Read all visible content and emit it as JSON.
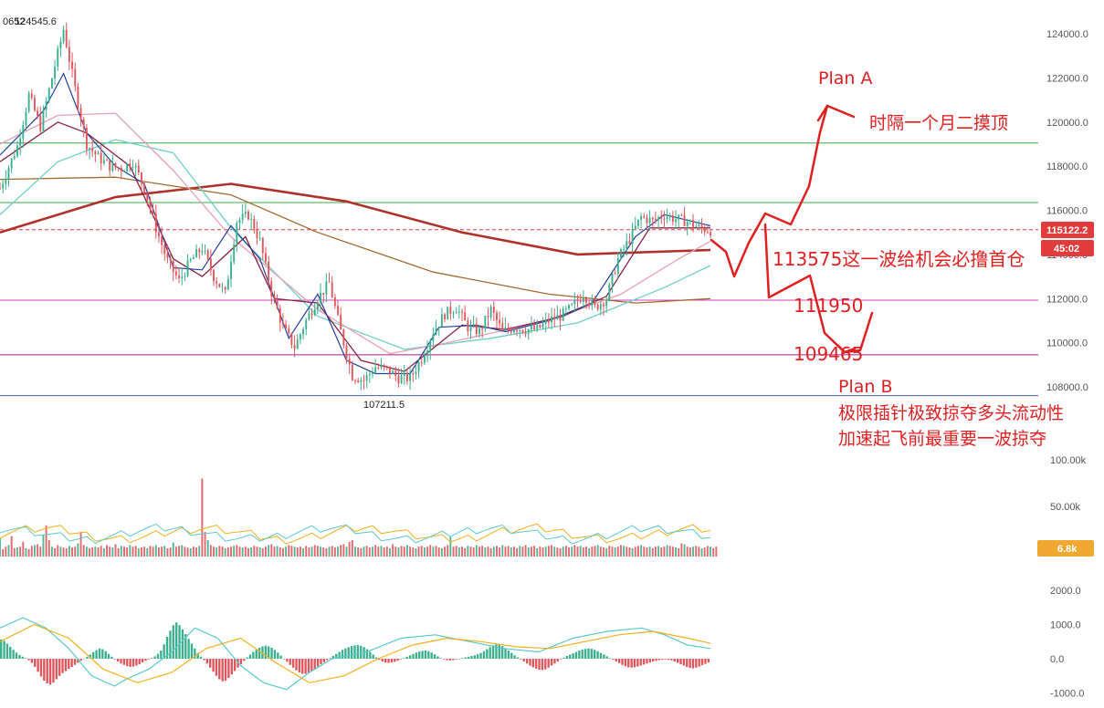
{
  "chart_data": {
    "type": "candlestick",
    "y_axis_ticks": [
      "124000.0",
      "122000.0",
      "120000.0",
      "118000.0",
      "116000.0",
      "114000.0",
      "112000.0",
      "110000.0",
      "108000.0"
    ],
    "ylim": [
      106800,
      125600
    ],
    "volume_axis_ticks": [
      "100.00k",
      "50.00k"
    ],
    "volume_ylim": [
      0,
      120000
    ],
    "macd_axis_ticks": [
      "2000.0",
      "1000.0",
      "0.0",
      "-1000.0"
    ],
    "macd_ylim": [
      -1200,
      2300
    ],
    "current_price": "115122.2",
    "countdown": "45:02",
    "current_volume": "6.8k",
    "high_label": "124545.6",
    "high_value": 124545.6,
    "high_label_prefix": "0652",
    "low_label": "107211.5",
    "low_value": 107211.5,
    "horizontal_levels": [
      {
        "price": 119050,
        "color": "#3aa84a"
      },
      {
        "price": 116350,
        "color": "#3aa84a"
      },
      {
        "price": 111930,
        "color": "#d040c0"
      },
      {
        "price": 109450,
        "color": "#a02090"
      },
      {
        "price": 107600,
        "color": "#4060a0"
      }
    ],
    "dashed_current_price": 115122,
    "candle_path_anchors": [
      [
        0,
        117000
      ],
      [
        6,
        118900
      ],
      [
        10,
        121200
      ],
      [
        14,
        119800
      ],
      [
        18,
        122000
      ],
      [
        22,
        124200
      ],
      [
        26,
        121500
      ],
      [
        30,
        119000
      ],
      [
        34,
        118400
      ],
      [
        38,
        118000
      ],
      [
        42,
        117900
      ],
      [
        46,
        118200
      ],
      [
        50,
        117000
      ],
      [
        54,
        115200
      ],
      [
        58,
        113700
      ],
      [
        62,
        112800
      ],
      [
        66,
        113700
      ],
      [
        70,
        114300
      ],
      [
        74,
        113000
      ],
      [
        78,
        112200
      ],
      [
        82,
        115500
      ],
      [
        86,
        115800
      ],
      [
        90,
        114600
      ],
      [
        94,
        112300
      ],
      [
        98,
        110700
      ],
      [
        102,
        109800
      ],
      [
        106,
        111000
      ],
      [
        110,
        112000
      ],
      [
        114,
        112700
      ],
      [
        118,
        110500
      ],
      [
        122,
        108500
      ],
      [
        126,
        108300
      ],
      [
        130,
        108900
      ],
      [
        134,
        108800
      ],
      [
        138,
        108400
      ],
      [
        142,
        108400
      ],
      [
        146,
        109300
      ],
      [
        150,
        110500
      ],
      [
        154,
        111300
      ],
      [
        158,
        111600
      ],
      [
        162,
        110700
      ],
      [
        166,
        110500
      ],
      [
        170,
        111500
      ],
      [
        174,
        110500
      ],
      [
        178,
        110700
      ],
      [
        182,
        110600
      ],
      [
        186,
        110600
      ],
      [
        190,
        111000
      ],
      [
        194,
        111200
      ],
      [
        198,
        111600
      ],
      [
        202,
        112200
      ],
      [
        206,
        111600
      ],
      [
        210,
        112000
      ],
      [
        214,
        113800
      ],
      [
        218,
        114700
      ],
      [
        222,
        115700
      ],
      [
        226,
        115500
      ],
      [
        230,
        115800
      ],
      [
        234,
        115600
      ],
      [
        238,
        115500
      ],
      [
        242,
        115200
      ],
      [
        246,
        115100
      ]
    ],
    "ma_lines": [
      {
        "color": "#b0302a",
        "width": 2.6,
        "points": [
          [
            0,
            115000
          ],
          [
            40,
            116600
          ],
          [
            80,
            117200
          ],
          [
            120,
            116400
          ],
          [
            160,
            115000
          ],
          [
            200,
            114000
          ],
          [
            246,
            114200
          ]
        ]
      },
      {
        "color": "#a06a30",
        "width": 1.3,
        "points": [
          [
            0,
            117400
          ],
          [
            40,
            117500
          ],
          [
            80,
            116700
          ],
          [
            110,
            115000
          ],
          [
            150,
            113200
          ],
          [
            190,
            112200
          ],
          [
            220,
            111800
          ],
          [
            246,
            112000
          ]
        ]
      },
      {
        "color": "#6fd0c8",
        "width": 1.3,
        "points": [
          [
            0,
            115800
          ],
          [
            20,
            118200
          ],
          [
            40,
            119200
          ],
          [
            60,
            118600
          ],
          [
            80,
            115200
          ],
          [
            110,
            111200
          ],
          [
            140,
            109700
          ],
          [
            170,
            110200
          ],
          [
            200,
            110900
          ],
          [
            230,
            112500
          ],
          [
            246,
            113500
          ]
        ]
      },
      {
        "color": "#e8a0b8",
        "width": 1.3,
        "points": [
          [
            0,
            119000
          ],
          [
            20,
            120300
          ],
          [
            40,
            120400
          ],
          [
            60,
            117800
          ],
          [
            80,
            114800
          ],
          [
            110,
            111500
          ],
          [
            135,
            109500
          ],
          [
            155,
            110000
          ],
          [
            190,
            111000
          ],
          [
            215,
            112200
          ],
          [
            235,
            113800
          ],
          [
            246,
            114600
          ]
        ]
      },
      {
        "color": "#8a2040",
        "width": 1.3,
        "points": [
          [
            0,
            118200
          ],
          [
            20,
            120000
          ],
          [
            30,
            119500
          ],
          [
            45,
            118000
          ],
          [
            60,
            113800
          ],
          [
            70,
            113000
          ],
          [
            85,
            114800
          ],
          [
            95,
            112000
          ],
          [
            110,
            111800
          ],
          [
            125,
            109200
          ],
          [
            140,
            108700
          ],
          [
            160,
            110800
          ],
          [
            175,
            110600
          ],
          [
            195,
            111200
          ],
          [
            210,
            112100
          ],
          [
            225,
            115200
          ],
          [
            246,
            115200
          ]
        ]
      },
      {
        "color": "#2040a0",
        "width": 1.2,
        "points": [
          [
            0,
            118500
          ],
          [
            15,
            120500
          ],
          [
            22,
            122200
          ],
          [
            30,
            119500
          ],
          [
            40,
            118000
          ],
          [
            50,
            117200
          ],
          [
            60,
            113400
          ],
          [
            70,
            113300
          ],
          [
            80,
            115300
          ],
          [
            90,
            113800
          ],
          [
            100,
            110200
          ],
          [
            110,
            112200
          ],
          [
            120,
            109200
          ],
          [
            130,
            108600
          ],
          [
            142,
            108600
          ],
          [
            152,
            110700
          ],
          [
            165,
            110800
          ],
          [
            175,
            110500
          ],
          [
            190,
            111000
          ],
          [
            205,
            111800
          ],
          [
            220,
            114800
          ],
          [
            230,
            115800
          ],
          [
            246,
            115300
          ]
        ]
      }
    ],
    "volume_bars": [
      22,
      9,
      12,
      14,
      25,
      10,
      11,
      12,
      18,
      10,
      9,
      13,
      14,
      15,
      12,
      26,
      38,
      20,
      12,
      10,
      14,
      12,
      11,
      10,
      13,
      11,
      12,
      16,
      30,
      14,
      12,
      10,
      11,
      12,
      11,
      13,
      10,
      14,
      12,
      11,
      15,
      10,
      13,
      12,
      11,
      14,
      12,
      13,
      10,
      11,
      12,
      10,
      13,
      12,
      14,
      11,
      12,
      13,
      10,
      11,
      17,
      12,
      13,
      14,
      12,
      11,
      10,
      12,
      11,
      13,
      95,
      30,
      20,
      14,
      12,
      11,
      13,
      12,
      10,
      11,
      12,
      13,
      14,
      12,
      11,
      12,
      10,
      11,
      13,
      12,
      11,
      10,
      12,
      14,
      15,
      12,
      13,
      11,
      10,
      12,
      14,
      13,
      12,
      11,
      12,
      10,
      13,
      11,
      12,
      14,
      13,
      12,
      11,
      10,
      12,
      13,
      11,
      12,
      14,
      15,
      12,
      18,
      20,
      12,
      11,
      10,
      12,
      13,
      11,
      12,
      14,
      12,
      13,
      11,
      12,
      10,
      15,
      12,
      11,
      13,
      12,
      14,
      12,
      11,
      10,
      12,
      13,
      11,
      12,
      14,
      12,
      13,
      11,
      10,
      12,
      14,
      24,
      12,
      13,
      11,
      12,
      10,
      13,
      12,
      11,
      14,
      12,
      13,
      11,
      12,
      10,
      12,
      13,
      11,
      14,
      12,
      13,
      11,
      12,
      10,
      13,
      12,
      14,
      11,
      12,
      13,
      10,
      12,
      11,
      12,
      13,
      14,
      12,
      11,
      10,
      12,
      13,
      11,
      12,
      14,
      12,
      13,
      11,
      12,
      10,
      12,
      13,
      14,
      12,
      11,
      10,
      13,
      12,
      11,
      12,
      14,
      13,
      12,
      11,
      10,
      12,
      13,
      14,
      12,
      11,
      12,
      10,
      12,
      13,
      11,
      12,
      14,
      13,
      12,
      11,
      10,
      16,
      15,
      12,
      11,
      12,
      13,
      12,
      10,
      11,
      13,
      12,
      10,
      12
    ],
    "macd_histogram": [
      560,
      520,
      440,
      350,
      260,
      180,
      110,
      60,
      20,
      -40,
      -120,
      -240,
      -380,
      -520,
      -640,
      -720,
      -760,
      -700,
      -600,
      -500,
      -420,
      -360,
      -300,
      -240,
      -180,
      -120,
      -60,
      0,
      60,
      120,
      190,
      250,
      300,
      280,
      220,
      140,
      60,
      -20,
      -80,
      -140,
      -180,
      -220,
      -240,
      -230,
      -200,
      -160,
      -110,
      -60,
      -20,
      20,
      70,
      140,
      240,
      420,
      640,
      820,
      980,
      1060,
      980,
      860,
      720,
      580,
      440,
      300,
      170,
      60,
      -40,
      -140,
      -260,
      -380,
      -500,
      -600,
      -660,
      -640,
      -560,
      -460,
      -360,
      -260,
      -160,
      -60,
      40,
      120,
      200,
      260,
      320,
      360,
      380,
      360,
      320,
      260,
      180,
      90,
      0,
      -90,
      -180,
      -260,
      -340,
      -400,
      -440,
      -440,
      -410,
      -360,
      -300,
      -230,
      -160,
      -100,
      -40,
      20,
      80,
      140,
      200,
      260,
      300,
      340,
      370,
      390,
      400,
      380,
      340,
      280,
      200,
      120,
      40,
      -30,
      -80,
      -110,
      -120,
      -110,
      -90,
      -60,
      -20,
      20,
      60,
      100,
      140,
      180,
      210,
      230,
      240,
      220,
      180,
      130,
      70,
      20,
      -20,
      -40,
      -50,
      -40,
      -20,
      0,
      20,
      40,
      60,
      80,
      100,
      130,
      170,
      220,
      280,
      340,
      390,
      420,
      410,
      370,
      310,
      240,
      170,
      100,
      40,
      -20,
      -80,
      -140,
      -200,
      -250,
      -290,
      -320,
      -330,
      -310,
      -260,
      -200,
      -140,
      -80,
      -20,
      30,
      80,
      120,
      160,
      200,
      240,
      270,
      290,
      300,
      290,
      260,
      220,
      170,
      120,
      70,
      20,
      -30,
      -80,
      -130,
      -180,
      -220,
      -250,
      -260,
      -250,
      -230,
      -200,
      -170,
      -140,
      -110,
      -80,
      -60,
      -40,
      -30,
      -20,
      -30,
      -50,
      -80,
      -120,
      -160,
      -200,
      -240,
      -270,
      -280,
      -260,
      -230,
      -190,
      -150,
      -110
    ],
    "macd_line": [
      [
        0,
        900
      ],
      [
        10,
        1200
      ],
      [
        20,
        900
      ],
      [
        30,
        300
      ],
      [
        40,
        -500
      ],
      [
        50,
        -800
      ],
      [
        55,
        -600
      ],
      [
        65,
        -300
      ],
      [
        75,
        200
      ],
      [
        85,
        900
      ],
      [
        95,
        600
      ],
      [
        105,
        -200
      ],
      [
        115,
        -700
      ],
      [
        125,
        -900
      ],
      [
        135,
        -400
      ],
      [
        145,
        0
      ],
      [
        160,
        200
      ],
      [
        175,
        600
      ],
      [
        190,
        700
      ],
      [
        205,
        500
      ],
      [
        220,
        300
      ],
      [
        235,
        200
      ],
      [
        250,
        600
      ],
      [
        265,
        800
      ],
      [
        280,
        900
      ],
      [
        290,
        700
      ],
      [
        300,
        400
      ],
      [
        310,
        300
      ]
    ],
    "signal_line": [
      [
        0,
        500
      ],
      [
        15,
        1000
      ],
      [
        30,
        600
      ],
      [
        45,
        -300
      ],
      [
        60,
        -700
      ],
      [
        75,
        -400
      ],
      [
        90,
        300
      ],
      [
        105,
        600
      ],
      [
        120,
        -100
      ],
      [
        135,
        -700
      ],
      [
        150,
        -500
      ],
      [
        165,
        0
      ],
      [
        180,
        400
      ],
      [
        195,
        600
      ],
      [
        210,
        500
      ],
      [
        225,
        350
      ],
      [
        240,
        300
      ],
      [
        255,
        500
      ],
      [
        270,
        700
      ],
      [
        285,
        800
      ],
      [
        300,
        600
      ],
      [
        310,
        450
      ]
    ],
    "annotations": {
      "plan_a": "Plan A",
      "plan_a_note": "时隔一个月二摸顶",
      "entry_note": "113575这一波给机会必撸首仓",
      "level_1": "111950",
      "level_2": "109465",
      "plan_b": "Plan B",
      "plan_b_note_1": "极限插针极致掠夺多头流动性",
      "plan_b_note_2": "加速起飞前最重要一波掠夺"
    },
    "colors": {
      "up": "#3bb08f",
      "down": "#e0565b",
      "annotation": "#e02020",
      "badge_price": "#e23b3b",
      "badge_volume": "#f0a830"
    }
  }
}
